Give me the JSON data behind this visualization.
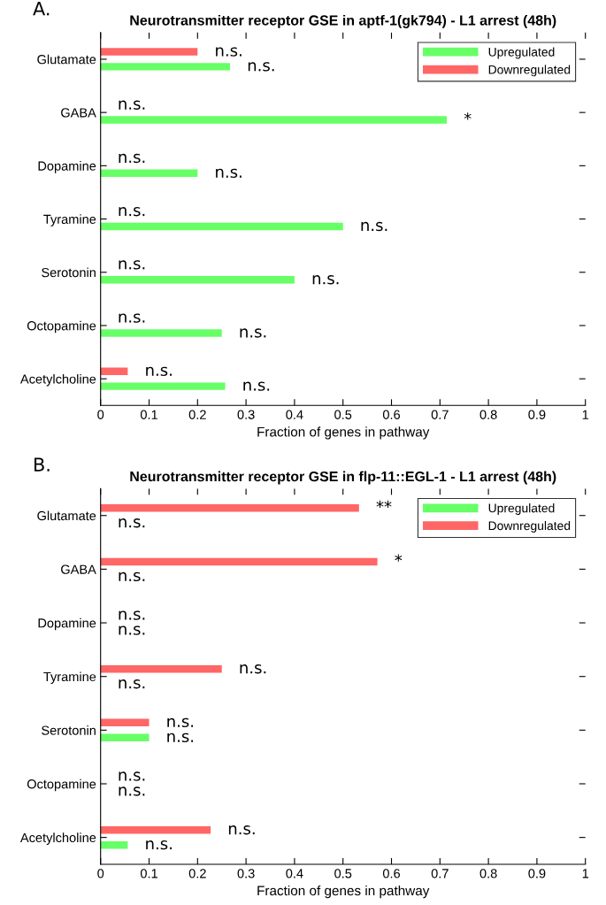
{
  "chart_data": [
    {
      "type": "bar",
      "orientation": "horizontal",
      "title": "Neurotransmitter receptor GSE in aptf-1(gk794) - L1 arrest (48h)",
      "xlabel": "Fraction of genes in pathway",
      "annotations": [
        "A."
      ],
      "categories": [
        "Glutamate",
        "GABA",
        "Dopamine",
        "Tyramine",
        "Serotonin",
        "Octopamine",
        "Acetylcholine"
      ],
      "series": [
        {
          "name": "Upregulated",
          "color": "#66ff66",
          "values": [
            0.267,
            0.714,
            0.2,
            0.5,
            0.4,
            0.25,
            0.257
          ],
          "value_labels": [
            "n.s.",
            "*",
            "n.s.",
            "n.s.",
            "n.s.",
            "n.s.",
            "n.s."
          ]
        },
        {
          "name": "Downregulated",
          "color": "#ff6666",
          "values": [
            0.2,
            0,
            0,
            0,
            0,
            0,
            0.056
          ],
          "value_labels": [
            "n.s.",
            "n.s.",
            "n.s.",
            "n.s.",
            "n.s.",
            "n.s.",
            "n.s."
          ]
        }
      ],
      "xlim": [
        0,
        1
      ],
      "xticks": [
        0,
        0.1,
        0.2,
        0.3,
        0.4,
        0.5,
        0.6,
        0.7,
        0.8,
        0.9,
        1
      ],
      "grid": false,
      "legend": "top right"
    },
    {
      "type": "bar",
      "orientation": "horizontal",
      "title": "Neurotransmitter receptor GSE in flp-11::EGL-1 - L1 arrest (48h)",
      "xlabel": "Fraction of genes in pathway",
      "annotations": [
        "B."
      ],
      "categories": [
        "Glutamate",
        "GABA",
        "Dopamine",
        "Tyramine",
        "Serotonin",
        "Octopamine",
        "Acetylcholine"
      ],
      "series": [
        {
          "name": "Upregulated",
          "color": "#66ff66",
          "values": [
            0,
            0,
            0,
            0,
            0.1,
            0,
            0.056
          ],
          "value_labels": [
            "n.s.",
            "n.s.",
            "n.s.",
            "n.s.",
            "n.s.",
            "n.s.",
            "n.s."
          ]
        },
        {
          "name": "Downregulated",
          "color": "#ff6666",
          "values": [
            0.533,
            0.571,
            0,
            0.25,
            0.1,
            0,
            0.227
          ],
          "value_labels": [
            "**",
            "*",
            "n.s.",
            "n.s.",
            "n.s.",
            "n.s.",
            "n.s."
          ]
        }
      ],
      "xlim": [
        0,
        1
      ],
      "xticks": [
        0,
        0.1,
        0.2,
        0.3,
        0.4,
        0.5,
        0.6,
        0.7,
        0.8,
        0.9,
        1
      ],
      "grid": false,
      "legend": "top right"
    }
  ]
}
